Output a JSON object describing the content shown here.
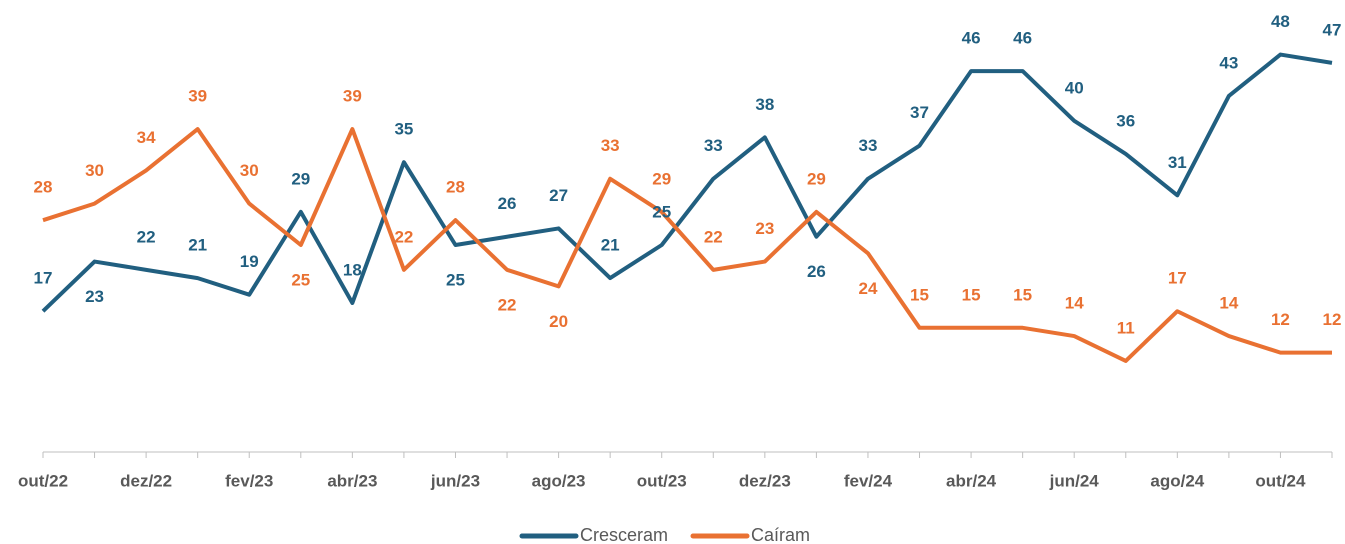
{
  "chart_data": {
    "type": "line",
    "categories": [
      "out/22",
      null,
      "dez/22",
      null,
      "fev/23",
      null,
      "abr/23",
      null,
      "jun/23",
      null,
      "ago/23",
      null,
      "out/23",
      null,
      "dez/23",
      null,
      "fev/24",
      null,
      "abr/24",
      null,
      "jun/24",
      null,
      "ago/24",
      null,
      "out/24",
      null
    ],
    "series": [
      {
        "name": "Cresceram",
        "color": "#215f80",
        "values": [
          17,
          23,
          22,
          21,
          19,
          29,
          18,
          35,
          25,
          26,
          27,
          21,
          25,
          33,
          38,
          26,
          33,
          37,
          46,
          46,
          40,
          36,
          31,
          43,
          48,
          47
        ]
      },
      {
        "name": "Caíram",
        "color": "#e97132",
        "values": [
          28,
          30,
          34,
          39,
          30,
          25,
          39,
          22,
          28,
          22,
          20,
          33,
          29,
          22,
          23,
          29,
          24,
          15,
          15,
          15,
          14,
          11,
          17,
          14,
          12,
          12
        ]
      }
    ],
    "ylim": [
      0,
      50
    ],
    "legend": "bottom",
    "grid": false
  }
}
